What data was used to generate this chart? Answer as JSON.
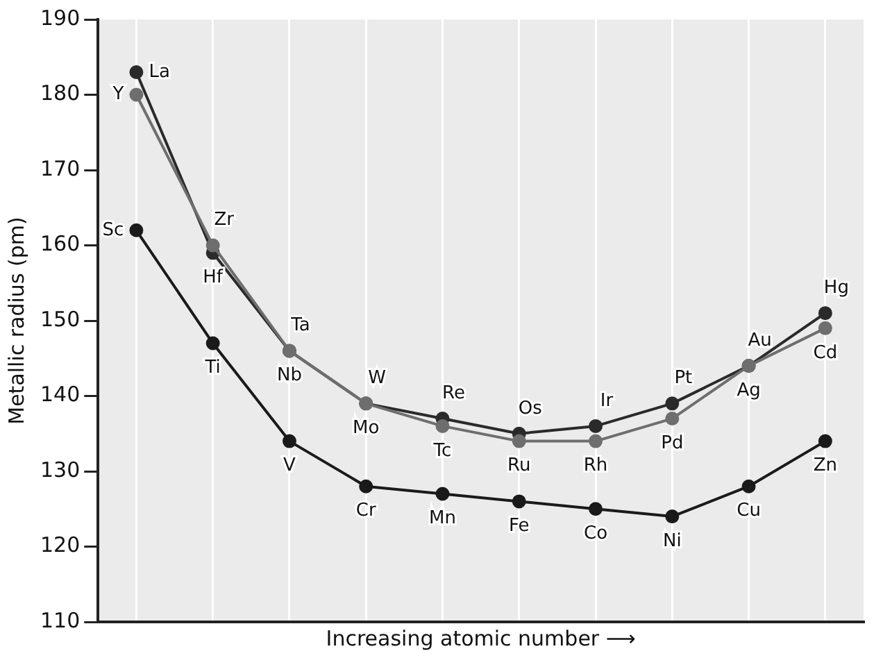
{
  "chart_data": {
    "type": "line",
    "xlabel": "Increasing atomic number ⟶",
    "ylabel": "Metallic radius (pm)",
    "categories": [
      null,
      null,
      null,
      null,
      null,
      null,
      null,
      null,
      null,
      null
    ],
    "ylim": [
      110,
      190
    ],
    "yticks": [
      110,
      120,
      130,
      140,
      150,
      160,
      170,
      180,
      190
    ],
    "grid": true,
    "legend": false,
    "tick_labels": "y",
    "marker": "circle",
    "line_style": "solid",
    "series": [
      {
        "color": "#1a1a1a",
        "values": [
          162,
          147,
          134,
          128,
          127,
          126,
          125,
          124,
          128,
          134
        ],
        "value_labels": [
          "Sc",
          "Ti",
          "V",
          "Cr",
          "Mn",
          "Fe",
          "Co",
          "Ni",
          "Cu",
          "Zn"
        ]
      },
      {
        "color": "#6e6e6e",
        "values": [
          180,
          160,
          146,
          139,
          136,
          134,
          134,
          137,
          144,
          149
        ],
        "value_labels": [
          "Y",
          "Zr",
          "Nb",
          "Mo",
          "Tc",
          "Ru",
          "Rh",
          "Pd",
          "Ag",
          "Cd"
        ]
      },
      {
        "color": "#2a2a2a",
        "values": [
          183,
          159,
          146,
          139,
          137,
          135,
          136,
          139,
          144,
          151
        ],
        "value_labels": [
          "La",
          "Hf",
          "Ta",
          "W",
          "Re",
          "Os",
          "Ir",
          "Pt",
          "Au",
          "Hg"
        ]
      }
    ]
  }
}
